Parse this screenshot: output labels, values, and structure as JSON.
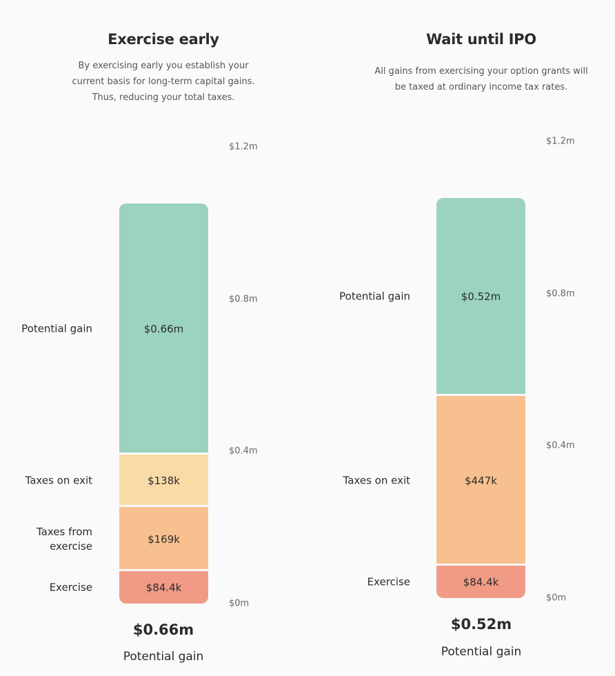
{
  "chart_data": [
    {
      "type": "stacked_bar",
      "title": "Exercise early",
      "subtitle": "By exercising early you establish your current basis for long-term capital gains. Thus, reducing your total taxes.",
      "series": [
        {
          "name": "Exercise",
          "color": "#f19b86",
          "values": [
            84400
          ],
          "value_labels": [
            "$84.4k"
          ]
        },
        {
          "name": "Taxes from exercise",
          "color": "#f9c08f",
          "values": [
            169000
          ],
          "value_labels": [
            "$169k"
          ]
        },
        {
          "name": "Taxes on exit",
          "color": "#f8dba6",
          "values": [
            138000
          ],
          "value_labels": [
            "$138k"
          ]
        },
        {
          "name": "Potential gain",
          "color": "#9bd3bf",
          "values": [
            660000
          ],
          "value_labels": [
            "$0.66m"
          ]
        }
      ],
      "ylim": [
        0,
        1200000
      ],
      "yticks": [
        {
          "value": 0,
          "label": "$0m"
        },
        {
          "value": 400000,
          "label": "$0.4m"
        },
        {
          "value": 800000,
          "label": "$0.8m"
        },
        {
          "value": 1200000,
          "label": "$1.2m"
        }
      ],
      "summary_value": "$0.66m",
      "summary_label": "Potential gain"
    },
    {
      "type": "stacked_bar",
      "title": "Wait until IPO",
      "subtitle": "All gains from exercising your option grants will be taxed at ordinary income tax rates.",
      "series": [
        {
          "name": "Exercise",
          "color": "#f19b86",
          "values": [
            84400
          ],
          "value_labels": [
            "$84.4k"
          ]
        },
        {
          "name": "Taxes on exit",
          "color": "#f9c08f",
          "values": [
            447000
          ],
          "value_labels": [
            "$447k"
          ]
        },
        {
          "name": "Potential gain",
          "color": "#9bd3bf",
          "values": [
            520000
          ],
          "value_labels": [
            "$0.52m"
          ]
        }
      ],
      "ylim": [
        0,
        1200000
      ],
      "yticks": [
        {
          "value": 0,
          "label": "$0m"
        },
        {
          "value": 400000,
          "label": "$0.4m"
        },
        {
          "value": 800000,
          "label": "$0.8m"
        },
        {
          "value": 1200000,
          "label": "$1.2m"
        }
      ],
      "summary_value": "$0.52m",
      "summary_label": "Potential gain"
    }
  ]
}
